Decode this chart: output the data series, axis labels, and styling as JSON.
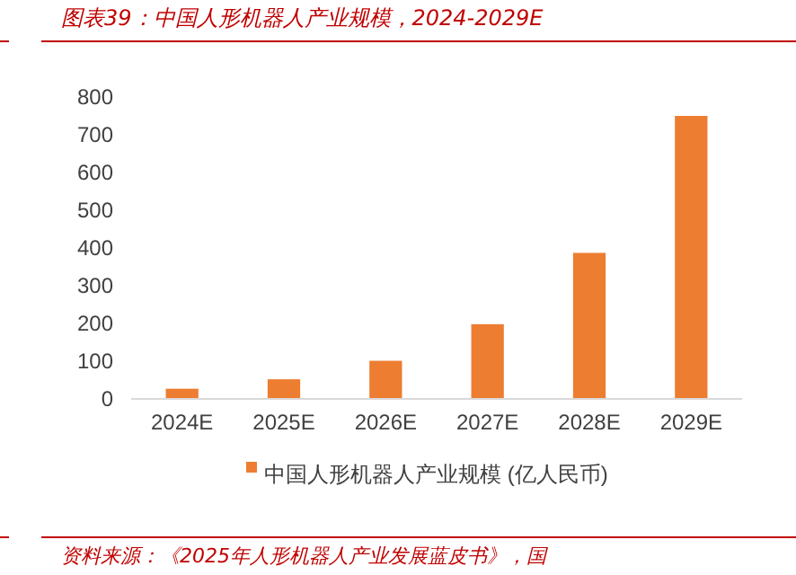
{
  "chart_data": {
    "type": "bar",
    "title": "图表39：中国人形机器人产业规模，2024-2029E",
    "categories": [
      "2024E",
      "2025E",
      "2026E",
      "2027E",
      "2028E",
      "2029E"
    ],
    "series": [
      {
        "name": "中国人形机器人产业规模 (亿人民币)",
        "color": "#ed7d31",
        "values": [
          27,
          52,
          101,
          198,
          387,
          750
        ]
      }
    ],
    "ylim": [
      0,
      800
    ],
    "yticks": [
      0,
      100,
      200,
      300,
      400,
      500,
      600,
      700,
      800
    ],
    "grid": false,
    "legend": "bottom",
    "annotations": [
      "资料来源：《2025年人形机器人产业发展蓝皮书》，国"
    ]
  }
}
